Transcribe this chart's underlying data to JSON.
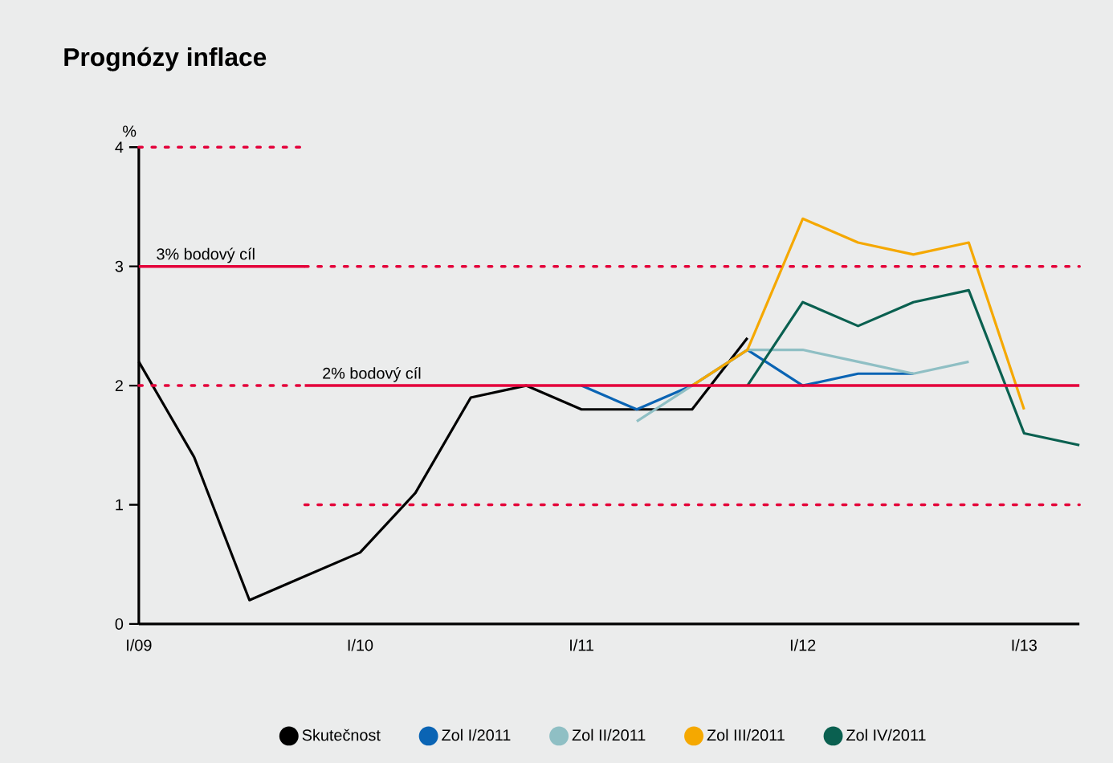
{
  "chart_data": {
    "type": "line",
    "title": "Prognózy inflace",
    "ylabel": "%",
    "categories": [
      "I/09",
      null,
      null,
      null,
      "I/10",
      null,
      null,
      null,
      "I/11",
      null,
      null,
      null,
      "I/12",
      null,
      null,
      null,
      "I/13",
      null
    ],
    "ylim": [
      0,
      4
    ],
    "yticks": [
      0,
      1,
      2,
      3,
      4
    ],
    "legend": "bottom",
    "grid": false,
    "annotations": [
      {
        "text": "3% bodový cíl",
        "y": 3
      },
      {
        "text": "2% bodový cíl",
        "y": 2
      }
    ],
    "series": [
      {
        "name": "Skutečnost",
        "color": "#000000",
        "values": [
          2.2,
          1.4,
          0.2,
          0.4,
          0.6,
          1.1,
          1.9,
          2.0,
          1.8,
          1.8,
          1.8,
          2.4,
          null,
          null,
          null,
          null,
          null,
          null
        ]
      },
      {
        "name": "Zol I/2011",
        "color": "#0a64b4",
        "values": [
          null,
          null,
          null,
          null,
          null,
          null,
          null,
          null,
          2.0,
          1.8,
          2.0,
          2.3,
          2.0,
          2.1,
          2.1,
          null,
          null,
          null
        ]
      },
      {
        "name": "Zol II/2011",
        "color": "#8fbfc4",
        "values": [
          null,
          null,
          null,
          null,
          null,
          null,
          null,
          null,
          null,
          1.7,
          2.0,
          2.3,
          2.3,
          2.2,
          2.1,
          2.2,
          null,
          null
        ]
      },
      {
        "name": "Zol III/2011",
        "color": "#f5a800",
        "values": [
          null,
          null,
          null,
          null,
          null,
          null,
          null,
          null,
          null,
          null,
          2.0,
          2.3,
          3.4,
          3.2,
          3.1,
          3.2,
          1.8,
          null
        ]
      },
      {
        "name": "Zol IV/2011",
        "color": "#0a6050",
        "values": [
          null,
          null,
          null,
          null,
          null,
          null,
          null,
          null,
          null,
          null,
          null,
          2.0,
          2.7,
          2.5,
          2.7,
          2.8,
          1.6,
          1.5
        ]
      },
      {
        "color": "#e4003a",
        "line_style": "dotted",
        "values": [
          4,
          4,
          4,
          4,
          null,
          null,
          null,
          null,
          null,
          null,
          null,
          null,
          null,
          null,
          null,
          null,
          null,
          null
        ]
      },
      {
        "color": "#e4003a",
        "line_style": "solid",
        "values": [
          3,
          3,
          3,
          3,
          null,
          null,
          null,
          null,
          null,
          null,
          null,
          null,
          null,
          null,
          null,
          null,
          null,
          null
        ]
      },
      {
        "color": "#e4003a",
        "line_style": "dotted",
        "values": [
          null,
          null,
          null,
          3,
          3,
          3,
          3,
          3,
          3,
          3,
          3,
          3,
          3,
          3,
          3,
          3,
          3,
          3
        ]
      },
      {
        "color": "#e4003a",
        "line_style": "dotted",
        "values": [
          2,
          2,
          2,
          2,
          null,
          null,
          null,
          null,
          null,
          null,
          null,
          null,
          null,
          null,
          null,
          null,
          null,
          null
        ]
      },
      {
        "color": "#e4003a",
        "line_style": "solid",
        "values": [
          null,
          null,
          null,
          2,
          2,
          2,
          2,
          2,
          2,
          2,
          2,
          2,
          2,
          2,
          2,
          2,
          2,
          2
        ]
      },
      {
        "color": "#e4003a",
        "line_style": "dotted",
        "values": [
          null,
          null,
          null,
          1,
          1,
          1,
          1,
          1,
          1,
          1,
          1,
          1,
          1,
          1,
          1,
          1,
          1,
          1
        ]
      }
    ]
  }
}
